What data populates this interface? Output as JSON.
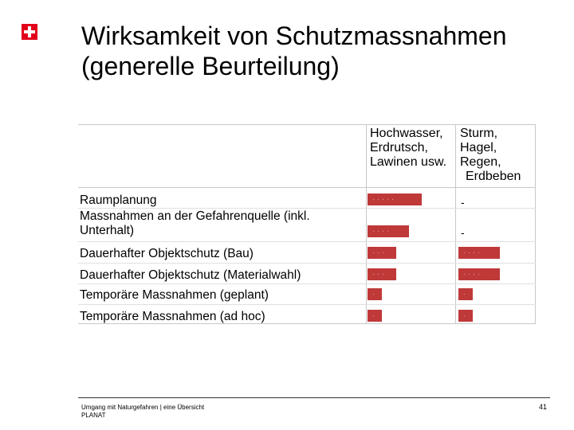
{
  "title": {
    "line1": "Wirksamkeit von Schutzmassnahmen",
    "line2": "(generelle Beurteilung)"
  },
  "table": {
    "columns": [
      [
        "Hochwasser,",
        "Erdrutsch,",
        "Lawinen usw."
      ],
      [
        "Sturm,",
        "Hagel,",
        "Regen,",
        "Erdbeben"
      ]
    ],
    "rows": [
      {
        "label": [
          "Raumplanung"
        ],
        "col1_rating": 4,
        "col2_rating": null,
        "col2_text": "-"
      },
      {
        "label": [
          "Massnahmen an der Gefahrenquelle (inkl.",
          "Unterhalt)"
        ],
        "col1_rating": 3,
        "col2_rating": null,
        "col2_text": "-"
      },
      {
        "label": [
          "Dauerhafter Objektschutz (Bau)"
        ],
        "col1_rating": 2,
        "col2_rating": 3
      },
      {
        "label": [
          "Dauerhafter Objektschutz (Materialwahl)"
        ],
        "col1_rating": 2,
        "col2_rating": 3
      },
      {
        "label": [
          "Temporäre Massnahmen (geplant)"
        ],
        "col1_rating": 1,
        "col2_rating": 1
      },
      {
        "label": [
          "Temporäre Massnahmen (ad hoc)"
        ],
        "col1_rating": 1,
        "col2_rating": 1
      }
    ],
    "bar_color": "#bf3939"
  },
  "footer": {
    "line1": "Umgang mit Naturgefahren | eine Übersicht",
    "line2": "PLANAT",
    "page_number": "41"
  },
  "logo": {
    "icon": "swiss-cross-icon",
    "color": "#e2001a"
  }
}
